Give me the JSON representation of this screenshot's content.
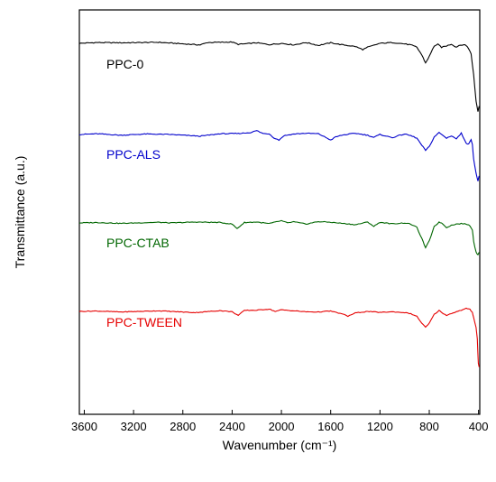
{
  "chart_data": {
    "type": "line",
    "title": "",
    "xlabel": "Wavenumber (cm⁻¹)",
    "ylabel": "Transmittance (a.u.)",
    "xlim": [
      3640,
      390
    ],
    "x_reversed": true,
    "x_ticks": [
      "3600",
      "3200",
      "2800",
      "2400",
      "2000",
      "1600",
      "1200",
      "800",
      "400"
    ],
    "x_tick_values": [
      3600,
      3200,
      2800,
      2400,
      2000,
      1600,
      1200,
      800,
      400
    ],
    "y_ticks_shown": false,
    "y_units": "arbitrary, offset stacked",
    "grid": false,
    "legend": "inline labels under each trace",
    "series": [
      {
        "name": "PPC-0",
        "color": "#000000",
        "points": [
          [
            3640,
            0
          ],
          [
            3500,
            0.3
          ],
          [
            3300,
            0.2
          ],
          [
            3000,
            0.4
          ],
          [
            2900,
            0.1
          ],
          [
            2660,
            -0.6
          ],
          [
            2600,
            0.3
          ],
          [
            2400,
            0.5
          ],
          [
            2350,
            -0.4
          ],
          [
            2200,
            0.2
          ],
          [
            2100,
            -0.5
          ],
          [
            2000,
            0
          ],
          [
            1900,
            -0.6
          ],
          [
            1800,
            0.3
          ],
          [
            1700,
            -0.8
          ],
          [
            1600,
            0.2
          ],
          [
            1500,
            -0.6
          ],
          [
            1400,
            -1.2
          ],
          [
            1340,
            -2.4
          ],
          [
            1300,
            -1.5
          ],
          [
            1200,
            0
          ],
          [
            1100,
            0.3
          ],
          [
            1000,
            -0.2
          ],
          [
            950,
            -0.6
          ],
          [
            900,
            -1.5
          ],
          [
            860,
            -4.5
          ],
          [
            830,
            -7.5
          ],
          [
            800,
            -5
          ],
          [
            760,
            -1
          ],
          [
            730,
            -0.4
          ],
          [
            700,
            -1.5
          ],
          [
            660,
            -1
          ],
          [
            620,
            -0.3
          ],
          [
            580,
            -1.5
          ],
          [
            560,
            -0.8
          ],
          [
            520,
            -0.5
          ],
          [
            490,
            -1.2
          ],
          [
            460,
            -4
          ],
          [
            440,
            -12
          ],
          [
            420,
            -22
          ],
          [
            405,
            -26
          ],
          [
            395,
            -24
          ]
        ]
      },
      {
        "name": "PPC-ALS",
        "color": "#0000cc",
        "points": [
          [
            3640,
            0
          ],
          [
            3500,
            0.3
          ],
          [
            3300,
            -0.3
          ],
          [
            3100,
            0.2
          ],
          [
            2900,
            0
          ],
          [
            2660,
            -0.7
          ],
          [
            2500,
            0.3
          ],
          [
            2350,
            0.4
          ],
          [
            2250,
            0.8
          ],
          [
            2200,
            1.6
          ],
          [
            2150,
            0.4
          ],
          [
            2100,
            0.3
          ],
          [
            2060,
            -1.4
          ],
          [
            2020,
            -2.3
          ],
          [
            1980,
            -0.5
          ],
          [
            1900,
            0.2
          ],
          [
            1800,
            0.5
          ],
          [
            1700,
            0.3
          ],
          [
            1640,
            -1.2
          ],
          [
            1600,
            -2.3
          ],
          [
            1560,
            -1
          ],
          [
            1500,
            -0.2
          ],
          [
            1400,
            0.5
          ],
          [
            1300,
            -0.3
          ],
          [
            1250,
            -1.2
          ],
          [
            1200,
            0
          ],
          [
            1100,
            -1.3
          ],
          [
            1050,
            -0.5
          ],
          [
            1000,
            0.2
          ],
          [
            950,
            -0.5
          ],
          [
            900,
            -1.5
          ],
          [
            860,
            -4.5
          ],
          [
            830,
            -6.5
          ],
          [
            800,
            -5
          ],
          [
            760,
            -1
          ],
          [
            720,
            0.8
          ],
          [
            700,
            0
          ],
          [
            660,
            -1.5
          ],
          [
            620,
            -0.5
          ],
          [
            580,
            -1.8
          ],
          [
            540,
            0.5
          ],
          [
            500,
            -3.5
          ],
          [
            480,
            -4
          ],
          [
            460,
            -2
          ],
          [
            450,
            -4
          ],
          [
            440,
            -10
          ],
          [
            420,
            -16
          ],
          [
            405,
            -19
          ],
          [
            395,
            -17
          ]
        ]
      },
      {
        "name": "PPC-CTAB",
        "color": "#006600",
        "points": [
          [
            3640,
            0
          ],
          [
            3500,
            0.2
          ],
          [
            3300,
            -0.2
          ],
          [
            3000,
            0.3
          ],
          [
            2900,
            0
          ],
          [
            2700,
            0.4
          ],
          [
            2500,
            0.2
          ],
          [
            2400,
            -0.5
          ],
          [
            2360,
            -2.5
          ],
          [
            2300,
            0.2
          ],
          [
            2200,
            0.4
          ],
          [
            2100,
            -0.3
          ],
          [
            2000,
            1
          ],
          [
            1950,
            0
          ],
          [
            1900,
            0.5
          ],
          [
            1800,
            -0.5
          ],
          [
            1700,
            0.6
          ],
          [
            1600,
            0.3
          ],
          [
            1500,
            -0.2
          ],
          [
            1400,
            -0.8
          ],
          [
            1300,
            0.4
          ],
          [
            1250,
            -1.5
          ],
          [
            1200,
            0.3
          ],
          [
            1100,
            -0.4
          ],
          [
            1000,
            0
          ],
          [
            950,
            -0.5
          ],
          [
            900,
            -2
          ],
          [
            860,
            -7
          ],
          [
            830,
            -11
          ],
          [
            800,
            -8
          ],
          [
            760,
            -1.5
          ],
          [
            720,
            0.3
          ],
          [
            700,
            0
          ],
          [
            660,
            -2
          ],
          [
            620,
            -1
          ],
          [
            580,
            -0.5
          ],
          [
            540,
            -0.3
          ],
          [
            500,
            -0.5
          ],
          [
            470,
            -1.2
          ],
          [
            450,
            -3
          ],
          [
            440,
            -8
          ],
          [
            420,
            -13
          ],
          [
            405,
            -14
          ],
          [
            395,
            -13
          ]
        ]
      },
      {
        "name": "PPC-TWEEN",
        "color": "#e60000",
        "points": [
          [
            3640,
            0
          ],
          [
            3500,
            0.2
          ],
          [
            3300,
            -0.3
          ],
          [
            3000,
            0.3
          ],
          [
            2900,
            0
          ],
          [
            2700,
            -0.6
          ],
          [
            2500,
            0.4
          ],
          [
            2400,
            -0.2
          ],
          [
            2350,
            -2
          ],
          [
            2300,
            0.5
          ],
          [
            2200,
            0.6
          ],
          [
            2100,
            1.2
          ],
          [
            2050,
            0
          ],
          [
            2000,
            0.8
          ],
          [
            1900,
            0.3
          ],
          [
            1800,
            -0.2
          ],
          [
            1700,
            -0.3
          ],
          [
            1600,
            0.2
          ],
          [
            1500,
            -1.4
          ],
          [
            1460,
            -2.4
          ],
          [
            1400,
            -0.8
          ],
          [
            1300,
            0
          ],
          [
            1200,
            -0.5
          ],
          [
            1100,
            -0.2
          ],
          [
            1000,
            -0.6
          ],
          [
            950,
            -1.2
          ],
          [
            900,
            -2.5
          ],
          [
            860,
            -6
          ],
          [
            830,
            -8
          ],
          [
            800,
            -6
          ],
          [
            760,
            -1.5
          ],
          [
            720,
            0.5
          ],
          [
            700,
            -0.5
          ],
          [
            660,
            -2
          ],
          [
            620,
            -1
          ],
          [
            580,
            -0.2
          ],
          [
            540,
            0.6
          ],
          [
            500,
            1.5
          ],
          [
            470,
            1
          ],
          [
            450,
            -0.5
          ],
          [
            440,
            -3
          ],
          [
            420,
            -8
          ],
          [
            410,
            -14
          ],
          [
            402,
            -26
          ],
          [
            395,
            -28
          ]
        ]
      }
    ]
  }
}
